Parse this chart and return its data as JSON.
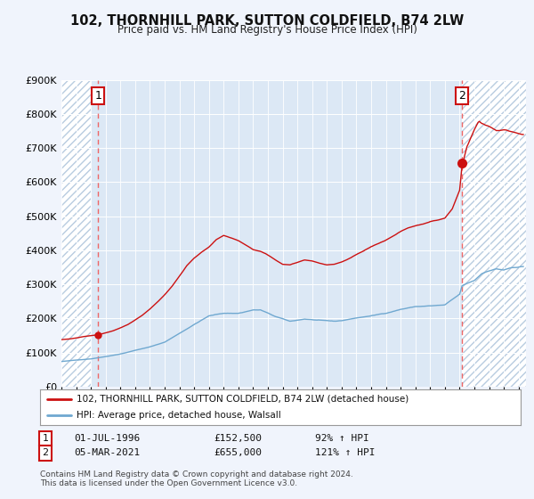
{
  "title": "102, THORNHILL PARK, SUTTON COLDFIELD, B74 2LW",
  "subtitle": "Price paid vs. HM Land Registry's House Price Index (HPI)",
  "legend_line1": "102, THORNHILL PARK, SUTTON COLDFIELD, B74 2LW (detached house)",
  "legend_line2": "HPI: Average price, detached house, Walsall",
  "sale1_date": "01-JUL-1996",
  "sale1_price": 152500,
  "sale1_year": 1996.5,
  "sale1_hpi": "92% ↑ HPI",
  "sale2_date": "05-MAR-2021",
  "sale2_price": 655000,
  "sale2_year": 2021.17,
  "sale2_hpi": "121% ↑ HPI",
  "footnote1": "Contains HM Land Registry data © Crown copyright and database right 2024.",
  "footnote2": "This data is licensed under the Open Government Licence v3.0.",
  "hpi_color": "#6fa8d0",
  "price_color": "#cc1111",
  "dashed_line_color": "#ee6666",
  "ylim": [
    0,
    900000
  ],
  "yticks": [
    0,
    100000,
    200000,
    300000,
    400000,
    500000,
    600000,
    700000,
    800000,
    900000
  ],
  "ytick_labels": [
    "£0",
    "£100K",
    "£200K",
    "£300K",
    "£400K",
    "£500K",
    "£600K",
    "£700K",
    "£800K",
    "£900K"
  ],
  "background_color": "#f0f4fc",
  "plot_bg_color": "#dce8f5",
  "hatch_color": "#b8cce0",
  "sale_box_color": "#cc1111",
  "xmin": 1994,
  "xmax": 2025.5
}
